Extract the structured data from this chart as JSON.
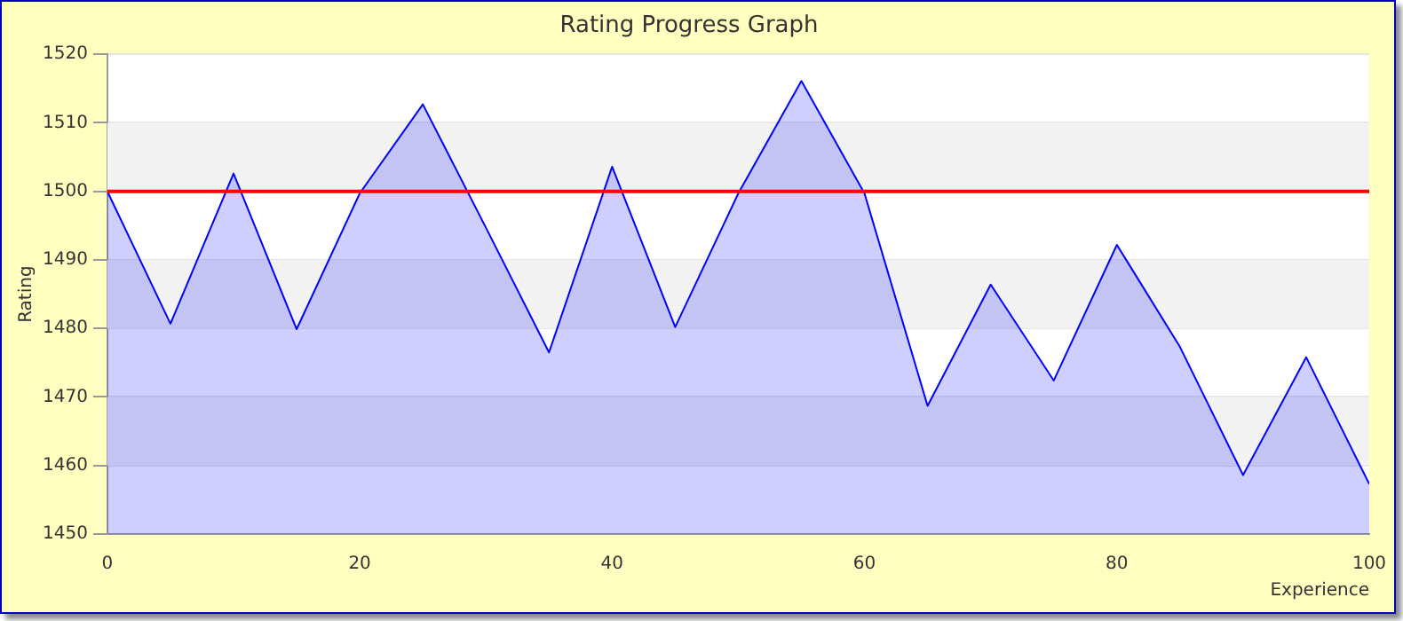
{
  "chart_data": {
    "type": "area",
    "title": "Rating Progress Graph",
    "xlabel": "Experience",
    "ylabel": "Rating",
    "x": [
      0,
      5,
      10,
      15,
      20,
      25,
      30,
      35,
      40,
      45,
      50,
      55,
      60,
      65,
      70,
      75,
      80,
      85,
      90,
      95,
      100
    ],
    "series": [
      {
        "color": "#0000ff",
        "values": [
          1500,
          1480.7,
          1502.6,
          1479.9,
          1499.7,
          1512.7,
          1494.7,
          1476.5,
          1503.6,
          1480.2,
          1499.7,
          1516.1,
          1499.7,
          1468.7,
          1486.4,
          1472.4,
          1492.2,
          1477.3,
          1458.6,
          1475.8,
          1457.3
        ]
      }
    ],
    "xlim": [
      0,
      100
    ],
    "xticks": [
      0,
      20,
      40,
      60,
      80,
      100
    ],
    "ylim": [
      1450,
      1520
    ],
    "yticks": [
      1450,
      1460,
      1470,
      1480,
      1490,
      1500,
      1510,
      1520
    ],
    "grid": "y",
    "legend": false,
    "marker": "none",
    "ref_lines": [
      {
        "axis": "y",
        "value": 1500,
        "color": "#ff0000"
      }
    ]
  }
}
